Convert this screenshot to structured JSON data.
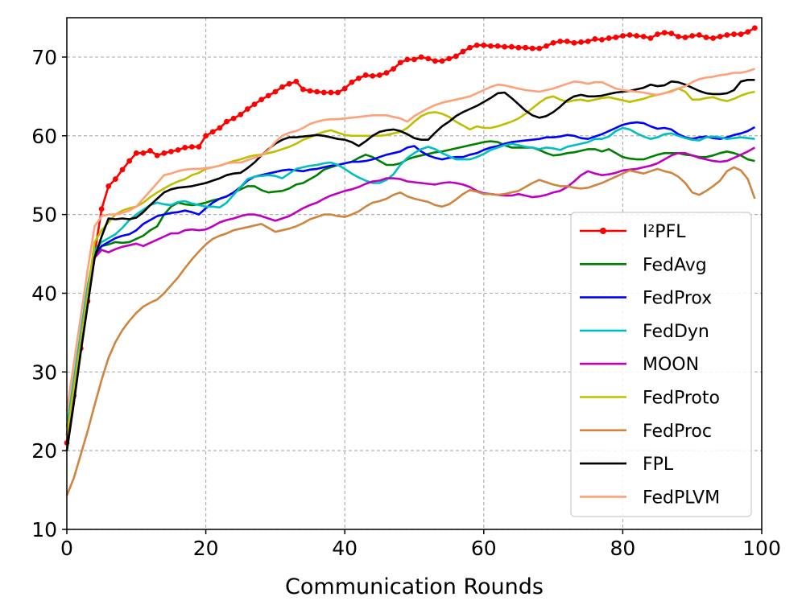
{
  "chart_data": {
    "type": "line",
    "title": "",
    "xlabel": "Communication Rounds",
    "ylabel": "",
    "xlim": [
      0,
      100
    ],
    "ylim": [
      10,
      75
    ],
    "xticks": [
      0,
      20,
      40,
      60,
      80,
      100
    ],
    "yticks": [
      10,
      20,
      30,
      40,
      50,
      60,
      70
    ],
    "grid": true,
    "legend_position": "lower-right",
    "x": [
      0,
      1,
      2,
      3,
      4,
      5,
      6,
      7,
      8,
      9,
      10,
      11,
      12,
      13,
      14,
      15,
      16,
      17,
      18,
      19,
      20,
      21,
      22,
      23,
      24,
      25,
      26,
      27,
      28,
      29,
      30,
      31,
      32,
      33,
      34,
      35,
      36,
      37,
      38,
      39,
      40,
      41,
      42,
      43,
      44,
      45,
      46,
      47,
      48,
      49,
      50,
      51,
      52,
      53,
      54,
      55,
      56,
      57,
      58,
      59,
      60,
      61,
      62,
      63,
      64,
      65,
      66,
      67,
      68,
      69,
      70,
      71,
      72,
      73,
      74,
      75,
      76,
      77,
      78,
      79,
      80,
      81,
      82,
      83,
      84,
      85,
      86,
      87,
      88,
      89,
      90,
      91,
      92,
      93,
      94,
      95,
      96,
      97,
      98,
      99
    ],
    "series": [
      {
        "name": "I²PFL",
        "color": "#ff0000",
        "marker": true,
        "values": [
          21,
          27,
          33,
          39,
          45,
          50.7,
          53.6,
          54.5,
          55.7,
          56.8,
          57.8,
          57.8,
          58.1,
          57.5,
          57.8,
          58.0,
          58.2,
          58.5,
          58.6,
          58.6,
          60.0,
          60.5,
          61.0,
          61.8,
          62.2,
          62.7,
          63.4,
          64.0,
          64.6,
          65.1,
          65.6,
          66.2,
          66.6,
          66.9,
          65.9,
          65.7,
          65.6,
          65.5,
          65.5,
          65.5,
          66.0,
          66.8,
          67.3,
          67.7,
          67.6,
          67.7,
          68.0,
          68.5,
          69.3,
          69.7,
          69.7,
          70.0,
          69.8,
          69.5,
          69.5,
          69.8,
          70.1,
          70.7,
          71.2,
          71.5,
          71.5,
          71.4,
          71.4,
          71.3,
          71.3,
          71.2,
          71.2,
          71.1,
          71.1,
          71.4,
          71.8,
          72.0,
          72.0,
          71.8,
          71.9,
          72.0,
          72.3,
          72.2,
          72.4,
          72.5,
          72.7,
          72.8,
          72.7,
          72.6,
          72.4,
          72.9,
          73.1,
          73.0,
          72.6,
          72.5,
          72.7,
          72.8,
          72.5,
          72.4,
          72.6,
          72.8,
          72.9,
          72.9,
          73.2,
          73.7
        ]
      },
      {
        "name": "FedAvg",
        "color": "#008000",
        "marker": false,
        "values": [
          20,
          26,
          33,
          39,
          44.5,
          46.0,
          46.2,
          46.5,
          46.4,
          46.5,
          46.9,
          47.3,
          48.0,
          48.5,
          50.0,
          51.0,
          51.5,
          51.3,
          51.2,
          51.3,
          51.5,
          51.8,
          52.0,
          52.3,
          52.8,
          53.2,
          53.6,
          53.6,
          53.1,
          52.8,
          52.9,
          53.0,
          53.3,
          53.8,
          54.0,
          54.5,
          55.0,
          55.7,
          56.0,
          56.3,
          56.5,
          56.7,
          57.2,
          57.6,
          57.3,
          56.8,
          56.3,
          56.3,
          56.5,
          57.0,
          57.3,
          57.5,
          57.7,
          57.9,
          58.0,
          58.2,
          58.4,
          58.6,
          58.8,
          59.0,
          59.2,
          59.3,
          59.2,
          58.8,
          58.5,
          58.5,
          58.5,
          58.5,
          58.2,
          57.8,
          57.5,
          57.6,
          57.8,
          57.9,
          58.1,
          58.3,
          58.3,
          58.0,
          58.3,
          57.8,
          57.3,
          57.1,
          57.0,
          57.0,
          57.3,
          57.6,
          57.8,
          57.8,
          57.8,
          57.6,
          57.5,
          57.3,
          57.3,
          57.5,
          57.8,
          58.0,
          57.8,
          57.5,
          57.0,
          56.8
        ]
      },
      {
        "name": "FedProx",
        "color": "#0000ff",
        "marker": false,
        "values": [
          22,
          28,
          34,
          40,
          45.0,
          46.0,
          46.5,
          47.0,
          47.3,
          47.5,
          48.0,
          48.8,
          49.3,
          49.8,
          50.0,
          50.2,
          50.3,
          50.5,
          50.3,
          50.0,
          50.8,
          51.5,
          52.0,
          52.3,
          52.8,
          53.5,
          54.3,
          54.8,
          55.0,
          55.2,
          55.4,
          55.6,
          55.7,
          55.6,
          55.5,
          55.7,
          55.8,
          56.0,
          56.2,
          56.3,
          56.5,
          56.7,
          56.7,
          56.8,
          57.0,
          57.3,
          57.6,
          57.8,
          58.0,
          58.5,
          58.7,
          58.0,
          57.5,
          57.2,
          57.0,
          57.2,
          57.3,
          57.3,
          57.6,
          57.8,
          58.2,
          58.5,
          58.7,
          59.0,
          59.2,
          59.3,
          59.4,
          59.5,
          59.6,
          59.8,
          59.8,
          59.9,
          60.1,
          60.0,
          59.7,
          59.6,
          59.9,
          60.2,
          60.6,
          61.0,
          61.4,
          61.6,
          61.7,
          61.6,
          61.2,
          60.9,
          61.0,
          60.8,
          60.2,
          59.8,
          59.6,
          59.8,
          59.9,
          59.7,
          59.6,
          59.8,
          60.1,
          60.3,
          60.6,
          61.1
        ]
      },
      {
        "name": "FedDyn",
        "color": "#00bfbf",
        "marker": false,
        "values": [
          23,
          29,
          35,
          41,
          45.5,
          46.5,
          47.0,
          47.5,
          48.3,
          49.3,
          50.0,
          50.6,
          51.2,
          51.5,
          51.3,
          51.2,
          51.6,
          51.7,
          51.4,
          51.2,
          51.0,
          51.0,
          50.9,
          51.5,
          52.5,
          53.5,
          54.5,
          54.8,
          54.9,
          55.0,
          54.9,
          54.6,
          55.2,
          55.8,
          56.0,
          56.2,
          56.3,
          56.5,
          56.6,
          56.3,
          55.8,
          55.2,
          54.7,
          54.3,
          54.0,
          54.0,
          54.4,
          55.1,
          56.3,
          57.2,
          57.8,
          58.3,
          58.6,
          58.3,
          57.8,
          57.4,
          57.0,
          57.0,
          57.0,
          57.3,
          57.7,
          58.2,
          58.5,
          58.8,
          59.0,
          58.8,
          58.6,
          58.5,
          58.3,
          58.5,
          58.4,
          58.2,
          58.6,
          58.8,
          59.0,
          59.2,
          59.6,
          59.6,
          59.9,
          60.6,
          61.0,
          60.8,
          60.3,
          59.9,
          59.6,
          59.8,
          60.2,
          60.3,
          60.0,
          59.7,
          59.5,
          59.4,
          59.8,
          59.9,
          59.8,
          59.6,
          59.7,
          59.8,
          59.7,
          59.6
        ]
      },
      {
        "name": "MOON",
        "color": "#bf00bf",
        "marker": false,
        "values": [
          22,
          28,
          34,
          40,
          44.5,
          45.5,
          45.2,
          45.6,
          45.9,
          46.1,
          46.3,
          46.0,
          46.4,
          46.8,
          47.2,
          47.6,
          47.6,
          48.0,
          48.1,
          48.0,
          48.1,
          48.5,
          49.0,
          49.3,
          49.5,
          49.8,
          50.0,
          50.0,
          49.8,
          49.5,
          49.2,
          49.5,
          49.8,
          50.3,
          50.8,
          51.2,
          51.5,
          52.0,
          52.4,
          52.7,
          53.0,
          53.2,
          53.5,
          53.9,
          54.2,
          54.3,
          54.6,
          54.6,
          54.5,
          54.2,
          54.1,
          54.0,
          53.9,
          53.8,
          54.0,
          54.1,
          54.0,
          53.8,
          53.5,
          53.0,
          52.7,
          52.6,
          52.5,
          52.4,
          52.4,
          52.6,
          52.4,
          52.2,
          52.3,
          52.5,
          52.8,
          53.0,
          53.5,
          54.2,
          55.0,
          55.5,
          55.2,
          55.0,
          55.1,
          55.3,
          55.6,
          55.7,
          55.8,
          56.0,
          56.2,
          56.5,
          57.0,
          57.5,
          57.8,
          57.8,
          57.5,
          57.2,
          57.0,
          56.8,
          56.7,
          56.8,
          57.2,
          57.6,
          58.0,
          58.5
        ]
      },
      {
        "name": "FedProto",
        "color": "#bfbf00",
        "marker": false,
        "values": [
          22,
          28,
          34,
          40,
          46.5,
          48.0,
          49.0,
          50.0,
          50.5,
          50.8,
          51.0,
          51.5,
          52.2,
          52.8,
          53.3,
          53.8,
          54.2,
          54.5,
          55.0,
          55.3,
          55.8,
          56.0,
          56.2,
          56.5,
          56.8,
          57.0,
          57.3,
          57.5,
          57.6,
          57.8,
          58.0,
          58.3,
          58.6,
          59.0,
          59.5,
          59.8,
          60.2,
          60.5,
          60.7,
          60.4,
          60.1,
          60.0,
          60.0,
          60.0,
          60.0,
          60.0,
          60.1,
          60.3,
          60.5,
          61.0,
          61.8,
          62.5,
          62.9,
          63.0,
          62.8,
          62.4,
          61.8,
          61.3,
          60.8,
          61.2,
          61.0,
          61.0,
          61.2,
          61.5,
          61.8,
          62.2,
          62.8,
          63.5,
          64.2,
          64.8,
          65.0,
          64.6,
          64.3,
          64.5,
          64.6,
          64.4,
          64.6,
          64.8,
          64.9,
          64.7,
          64.5,
          64.3,
          64.5,
          64.7,
          65.0,
          65.2,
          65.4,
          65.7,
          66.0,
          65.6,
          64.6,
          64.6,
          64.8,
          64.9,
          64.6,
          64.4,
          64.7,
          65.1,
          65.4,
          65.6
        ]
      },
      {
        "name": "FedProc",
        "color": "#cd853f",
        "marker": false,
        "values": [
          14.3,
          16.5,
          19.5,
          22.5,
          25.8,
          29.0,
          31.8,
          33.8,
          35.3,
          36.5,
          37.5,
          38.3,
          38.8,
          39.2,
          40.0,
          41.0,
          42.0,
          43.2,
          44.3,
          45.3,
          46.2,
          46.9,
          47.3,
          47.6,
          48.0,
          48.2,
          48.4,
          48.6,
          48.8,
          48.3,
          47.8,
          48.0,
          48.2,
          48.5,
          48.9,
          49.4,
          49.7,
          50.0,
          50.0,
          49.8,
          49.7,
          50.0,
          50.4,
          51.0,
          51.5,
          51.7,
          52.0,
          52.5,
          52.8,
          52.3,
          52.0,
          51.8,
          51.6,
          51.2,
          51.0,
          51.3,
          51.9,
          52.6,
          53.1,
          52.9,
          52.6,
          52.6,
          52.5,
          52.6,
          52.8,
          53.0,
          53.5,
          54.0,
          54.4,
          54.1,
          53.8,
          53.6,
          53.6,
          53.4,
          53.3,
          53.4,
          53.7,
          54.0,
          54.4,
          54.8,
          55.2,
          55.6,
          55.4,
          55.2,
          55.5,
          55.8,
          55.5,
          55.3,
          54.8,
          54.0,
          52.8,
          52.5,
          53.0,
          53.6,
          54.3,
          55.5,
          56.0,
          55.6,
          54.5,
          52.0
        ]
      },
      {
        "name": "FPL",
        "color": "#000000",
        "marker": false,
        "values": [
          20,
          26,
          32.5,
          38.5,
          44.5,
          47.2,
          49.5,
          49.4,
          49.5,
          49.4,
          49.6,
          50.3,
          51.2,
          52.0,
          52.8,
          53.2,
          53.4,
          53.5,
          53.6,
          53.8,
          54.0,
          54.3,
          54.6,
          55.0,
          55.2,
          55.3,
          55.9,
          56.6,
          57.5,
          58.3,
          59.0,
          59.5,
          59.8,
          59.8,
          59.9,
          60.0,
          60.1,
          60.0,
          59.8,
          59.6,
          59.5,
          59.2,
          58.7,
          59.3,
          60.0,
          60.5,
          60.7,
          60.8,
          60.6,
          60.2,
          59.7,
          59.5,
          59.5,
          60.4,
          61.2,
          61.8,
          62.5,
          63.0,
          63.4,
          63.8,
          64.3,
          64.8,
          65.4,
          65.5,
          64.8,
          64.0,
          63.2,
          62.6,
          62.3,
          62.5,
          63.0,
          63.7,
          64.5,
          65.0,
          65.2,
          65.0,
          65.0,
          65.1,
          65.3,
          65.5,
          65.6,
          65.7,
          65.9,
          66.1,
          66.5,
          66.3,
          66.4,
          66.9,
          66.8,
          66.5,
          66.1,
          65.7,
          65.4,
          65.3,
          65.3,
          65.4,
          65.8,
          66.9,
          67.1,
          67.1
        ]
      },
      {
        "name": "FedPLVM",
        "color": "#ffa07a",
        "marker": false,
        "values": [
          25,
          31,
          37,
          43,
          48.5,
          49.8,
          50.0,
          50.0,
          50.2,
          50.5,
          51.0,
          52.0,
          53.0,
          54.0,
          55.0,
          55.2,
          55.5,
          55.7,
          55.8,
          55.8,
          55.9,
          56.0,
          56.2,
          56.5,
          56.6,
          56.6,
          56.9,
          57.2,
          57.5,
          58.2,
          59.2,
          60.0,
          60.4,
          60.6,
          61.0,
          61.5,
          61.8,
          62.0,
          62.1,
          62.1,
          62.2,
          62.3,
          62.4,
          62.5,
          62.6,
          62.6,
          62.6,
          62.4,
          62.2,
          61.8,
          62.5,
          63.0,
          63.5,
          63.9,
          64.2,
          64.4,
          64.6,
          64.8,
          65.0,
          65.4,
          65.8,
          66.2,
          66.5,
          66.4,
          66.2,
          66.0,
          65.8,
          65.7,
          65.6,
          65.8,
          66.0,
          66.3,
          66.6,
          66.9,
          66.8,
          66.6,
          66.8,
          66.8,
          66.4,
          66.0,
          65.8,
          65.7,
          65.6,
          65.5,
          65.3,
          65.2,
          65.4,
          65.6,
          66.0,
          66.3,
          66.8,
          67.2,
          67.4,
          67.5,
          67.7,
          67.8,
          68.0,
          68.0,
          68.2,
          68.5
        ]
      }
    ]
  }
}
